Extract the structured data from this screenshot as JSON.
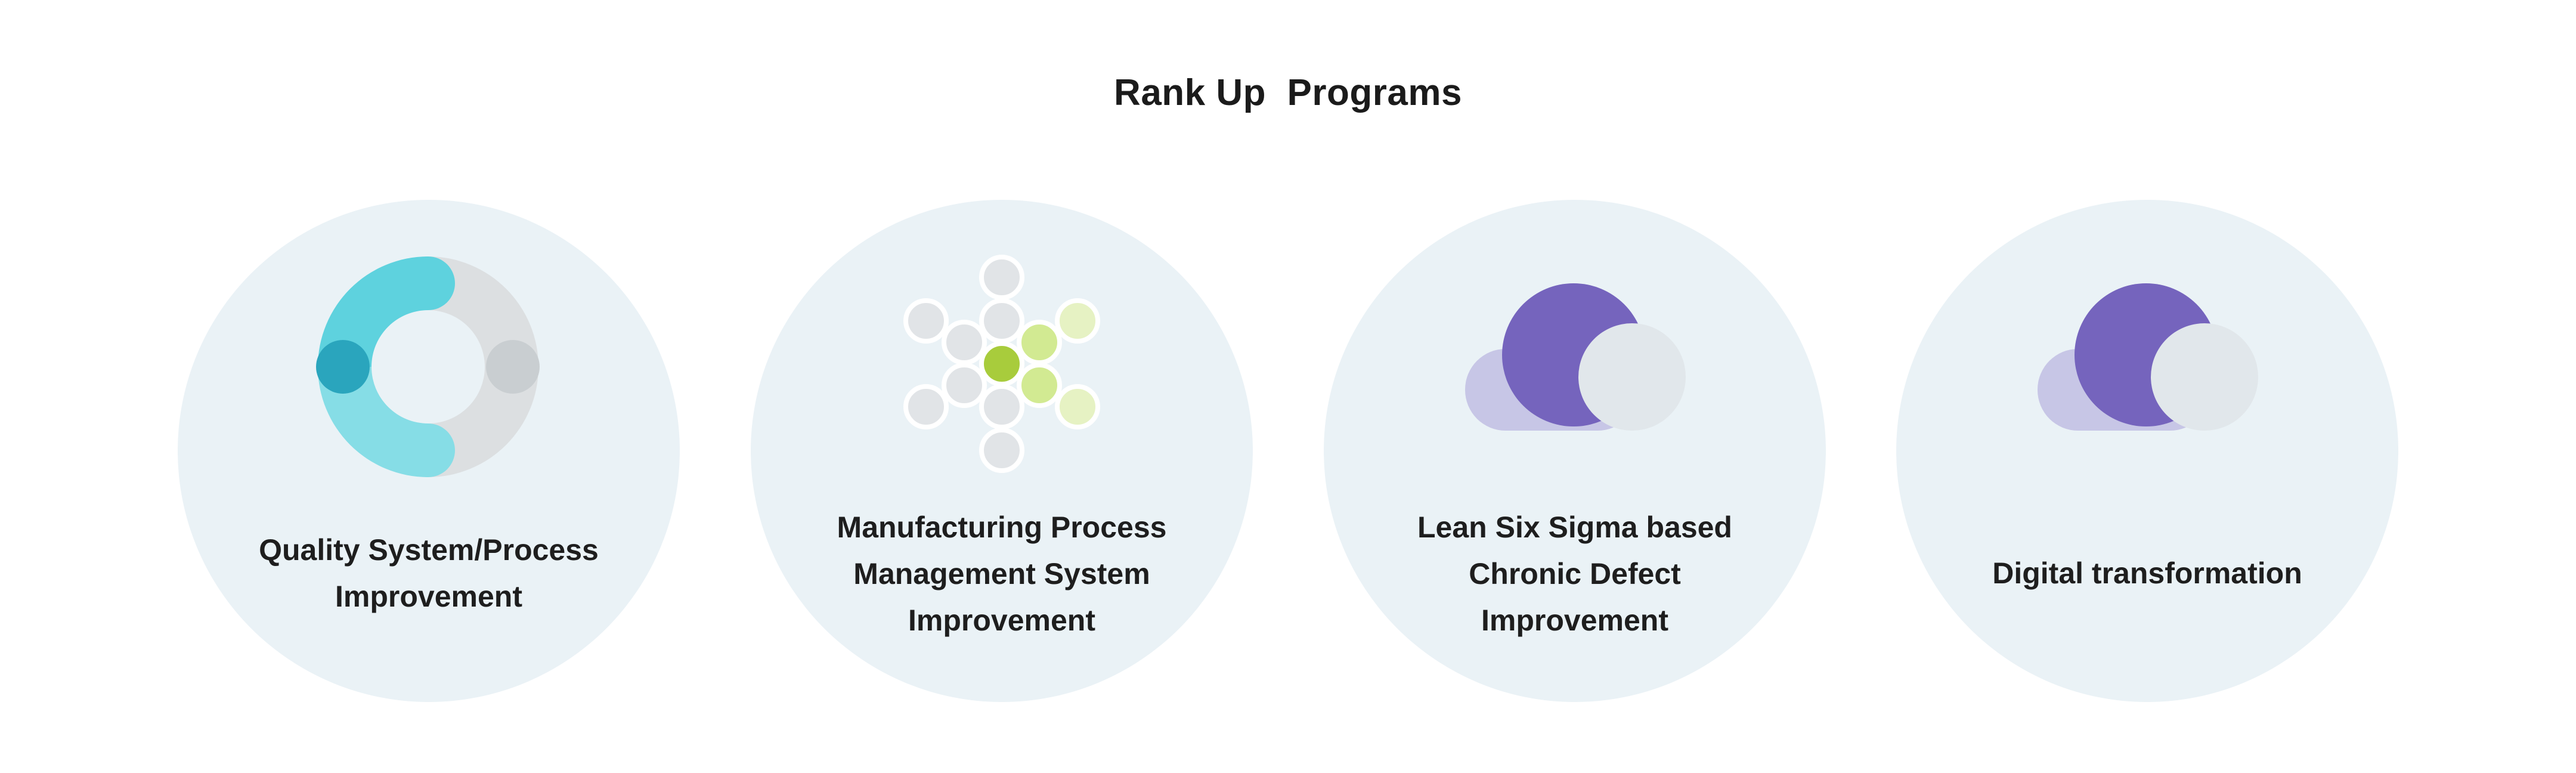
{
  "page": {
    "title": "Rank Up  Programs"
  },
  "programs": [
    {
      "icon": "donut-ring-icon",
      "label_lines": [
        "Quality System/Process",
        "Improvement"
      ]
    },
    {
      "icon": "node-network-icon",
      "label_lines": [
        "Manufacturing Process",
        "Management System",
        "Improvement"
      ]
    },
    {
      "icon": "cloud-bubbles-icon",
      "label_lines": [
        "Lean Six Sigma based",
        "Chronic Defect",
        "Improvement"
      ]
    },
    {
      "icon": "cloud-bubbles-icon",
      "label_lines": [
        "Digital transformation"
      ]
    }
  ],
  "colors": {
    "card_background": "#eaf2f6",
    "ring_teal_light": "#5ed2de",
    "ring_teal_pale": "#86dde6",
    "ring_teal_dark": "#2aa5bd",
    "ring_gray": "#dcdfe1",
    "node_gray": "#e1e4e7",
    "node_green": "#a8cc3c",
    "node_green_light": "#d2ea92",
    "node_green_pale": "#e6f2c3",
    "purple": "#7564bd",
    "purple_light": "#c7c6e6",
    "bubble_gray": "#e1e7eb"
  }
}
